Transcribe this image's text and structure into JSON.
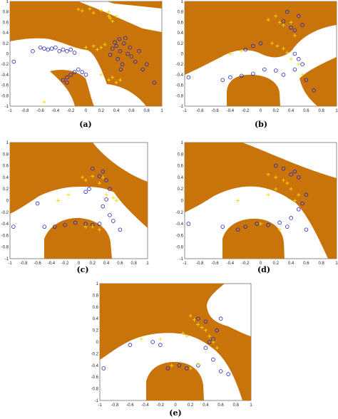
{
  "chart_data": [
    {
      "type": "scatter",
      "label": "(a)",
      "xlim": [
        -1,
        1
      ],
      "ylim": [
        -1,
        1
      ],
      "xticks": [
        "-1",
        "-0.8",
        "-0.6",
        "-0.4",
        "-0.2",
        "0",
        "0.2",
        "0.4",
        "0.6",
        "0.8",
        "1"
      ],
      "yticks": [
        "1",
        "0.8",
        "0.6",
        "0.4",
        "0.2",
        "0",
        "-0.2",
        "-0.4",
        "-0.6",
        "-0.8",
        "-1"
      ],
      "region_color": "#c8740a",
      "series": [
        {
          "marker": "circle",
          "color": "#2222bb",
          "points": [
            [
              -0.95,
              -0.15
            ],
            [
              -0.7,
              0.05
            ],
            [
              -0.6,
              0.12
            ],
            [
              -0.55,
              0.1
            ],
            [
              -0.5,
              0.08
            ],
            [
              -0.45,
              0.1
            ],
            [
              -0.4,
              0.12
            ],
            [
              -0.35,
              0.05
            ],
            [
              -0.3,
              0.08
            ],
            [
              -0.25,
              0.05
            ],
            [
              -0.2,
              0.08
            ],
            [
              -0.15,
              0.02
            ],
            [
              -0.3,
              -0.5
            ],
            [
              -0.25,
              -0.45
            ],
            [
              -0.2,
              -0.4
            ],
            [
              -0.15,
              -0.35
            ],
            [
              -0.1,
              -0.3
            ],
            [
              -0.05,
              -0.35
            ],
            [
              0.0,
              -0.4
            ],
            [
              -0.25,
              -0.55
            ],
            [
              0.35,
              0.1
            ],
            [
              0.4,
              0.15
            ],
            [
              0.45,
              0.05
            ],
            [
              0.5,
              0.2
            ],
            [
              0.55,
              0.0
            ],
            [
              0.6,
              -0.05
            ],
            [
              0.42,
              -0.1
            ],
            [
              0.38,
              0.22
            ],
            [
              0.48,
              -0.2
            ],
            [
              0.52,
              0.3
            ],
            [
              0.58,
              0.12
            ],
            [
              0.65,
              -0.15
            ],
            [
              0.7,
              0.05
            ],
            [
              0.32,
              -0.02
            ],
            [
              0.44,
              0.28
            ],
            [
              0.75,
              -0.3
            ],
            [
              0.8,
              -0.2
            ],
            [
              0.9,
              -0.55
            ],
            [
              0.46,
              -0.3
            ]
          ]
        },
        {
          "marker": "plus",
          "color": "#ffd700",
          "points": [
            [
              -0.1,
              0.85
            ],
            [
              -0.05,
              0.82
            ],
            [
              0.05,
              0.86
            ],
            [
              0.1,
              0.78
            ],
            [
              0.2,
              0.83
            ],
            [
              0.3,
              0.72
            ],
            [
              0.3,
              0.8
            ],
            [
              0.32,
              0.68
            ],
            [
              0.35,
              0.62
            ],
            [
              0.4,
              0.72
            ],
            [
              0.1,
              0.15
            ],
            [
              0.2,
              0.12
            ],
            [
              0.25,
              0.18
            ],
            [
              0.15,
              0.08
            ],
            [
              0.0,
              0.12
            ],
            [
              0.2,
              -0.4
            ],
            [
              0.3,
              -0.5
            ],
            [
              0.35,
              -0.45
            ],
            [
              0.4,
              -0.55
            ],
            [
              0.45,
              -0.5
            ],
            [
              -0.55,
              -0.92
            ]
          ]
        }
      ]
    },
    {
      "type": "scatter",
      "label": "(b)",
      "xlim": [
        -1,
        1
      ],
      "ylim": [
        -1,
        1
      ],
      "xticks": [
        "-1",
        "-0.8",
        "-0.6",
        "-0.4",
        "-0.2",
        "0",
        "0.2",
        "0.4",
        "0.6",
        "0.8",
        "1"
      ],
      "yticks": [
        "1",
        "0.8",
        "0.6",
        "0.4",
        "0.2",
        "0",
        "-0.2",
        "-0.4",
        "-0.6",
        "-0.8",
        "-1"
      ],
      "region_color": "#c8740a",
      "series": [
        {
          "marker": "circle",
          "color": "#2222bb",
          "points": [
            [
              -0.95,
              -0.45
            ],
            [
              -0.5,
              -0.5
            ],
            [
              -0.4,
              -0.45
            ],
            [
              -0.25,
              -0.42
            ],
            [
              -0.1,
              -0.38
            ],
            [
              0.05,
              -0.3
            ],
            [
              0.2,
              -0.32
            ],
            [
              0.3,
              -0.4
            ],
            [
              0.45,
              -0.3
            ],
            [
              0.5,
              -0.1
            ],
            [
              0.45,
              0.0
            ],
            [
              0.55,
              -0.2
            ],
            [
              0.6,
              -0.5
            ],
            [
              0.7,
              -0.7
            ],
            [
              0.4,
              0.5
            ],
            [
              0.45,
              0.45
            ],
            [
              0.3,
              0.62
            ],
            [
              0.35,
              0.8
            ],
            [
              0.5,
              0.72
            ],
            [
              0.55,
              0.55
            ],
            [
              -0.1,
              0.15
            ],
            [
              -0.2,
              0.08
            ],
            [
              0.0,
              0.2
            ]
          ]
        },
        {
          "marker": "plus",
          "color": "#ffd700",
          "points": [
            [
              0.1,
              0.65
            ],
            [
              0.2,
              0.72
            ],
            [
              0.25,
              0.6
            ],
            [
              0.3,
              0.55
            ],
            [
              0.4,
              0.6
            ],
            [
              0.45,
              0.35
            ],
            [
              0.15,
              0.2
            ],
            [
              0.22,
              0.15
            ],
            [
              0.3,
              0.1
            ],
            [
              0.35,
              0.02
            ],
            [
              0.4,
              -0.1
            ],
            [
              0.5,
              -0.2
            ],
            [
              0.55,
              -0.4
            ],
            [
              -0.4,
              0.0
            ],
            [
              -0.25,
              0.05
            ]
          ]
        }
      ]
    },
    {
      "type": "scatter",
      "label": "(c)",
      "xlim": [
        -1,
        1
      ],
      "ylim": [
        -1,
        1
      ],
      "xticks": [
        "-1",
        "-0.8",
        "-0.6",
        "-0.4",
        "-0.2",
        "0",
        "0.2",
        "0.4",
        "0.6",
        "0.8",
        "1"
      ],
      "yticks": [
        "1",
        "0.8",
        "0.6",
        "0.4",
        "0.2",
        "0",
        "-0.2",
        "-0.4",
        "-0.6",
        "-0.8",
        "-1"
      ],
      "region_color": "#c8740a",
      "series": [
        {
          "marker": "circle",
          "color": "#2222bb",
          "points": [
            [
              -0.95,
              -0.45
            ],
            [
              -0.6,
              -0.05
            ],
            [
              -0.5,
              -0.45
            ],
            [
              -0.35,
              -0.45
            ],
            [
              -0.2,
              -0.42
            ],
            [
              -0.05,
              -0.38
            ],
            [
              0.1,
              -0.4
            ],
            [
              0.2,
              -0.42
            ],
            [
              0.3,
              -0.4
            ],
            [
              0.35,
              -0.1
            ],
            [
              0.4,
              0.02
            ],
            [
              0.45,
              -0.25
            ],
            [
              0.5,
              -0.35
            ],
            [
              0.6,
              -0.5
            ],
            [
              0.3,
              0.42
            ],
            [
              0.35,
              0.5
            ],
            [
              0.4,
              0.35
            ],
            [
              0.45,
              0.2
            ],
            [
              0.2,
              0.55
            ],
            [
              0.15,
              0.2
            ],
            [
              0.1,
              0.15
            ]
          ]
        },
        {
          "marker": "plus",
          "color": "#ffd700",
          "points": [
            [
              0.05,
              0.4
            ],
            [
              0.1,
              0.35
            ],
            [
              0.2,
              0.42
            ],
            [
              0.3,
              0.3
            ],
            [
              0.35,
              0.4
            ],
            [
              0.4,
              0.1
            ],
            [
              0.5,
              0.05
            ],
            [
              0.55,
              0.0
            ],
            [
              0.2,
              -0.45
            ],
            [
              0.3,
              -0.5
            ],
            [
              0.1,
              -0.45
            ],
            [
              -0.3,
              0.0
            ],
            [
              -0.15,
              0.1
            ]
          ]
        }
      ]
    },
    {
      "type": "scatter",
      "label": "(d)",
      "xlim": [
        -1,
        1
      ],
      "ylim": [
        -1,
        1
      ],
      "xticks": [
        "-1",
        "-0.8",
        "-0.6",
        "-0.4",
        "-0.2",
        "0",
        "0.2",
        "0.4",
        "0.6",
        "0.8",
        "1"
      ],
      "yticks": [
        "1",
        "0.8",
        "0.6",
        "0.4",
        "0.2",
        "0",
        "-0.2",
        "-0.4",
        "-0.6",
        "-0.8",
        "-1"
      ],
      "region_color": "#c8740a",
      "series": [
        {
          "marker": "circle",
          "color": "#2222bb",
          "points": [
            [
              -0.95,
              -0.4
            ],
            [
              -0.5,
              -0.45
            ],
            [
              -0.3,
              -0.5
            ],
            [
              -0.2,
              -0.45
            ],
            [
              -0.05,
              -0.4
            ],
            [
              0.1,
              -0.42
            ],
            [
              0.25,
              -0.38
            ],
            [
              0.35,
              -0.45
            ],
            [
              0.4,
              -0.3
            ],
            [
              0.5,
              -0.15
            ],
            [
              0.55,
              -0.05
            ],
            [
              0.6,
              -0.5
            ],
            [
              0.4,
              0.45
            ],
            [
              0.45,
              0.5
            ],
            [
              0.5,
              0.4
            ],
            [
              0.3,
              0.55
            ],
            [
              0.2,
              0.6
            ],
            [
              0.6,
              0.1
            ]
          ]
        },
        {
          "marker": "plus",
          "color": "#ffd700",
          "points": [
            [
              0.1,
              0.45
            ],
            [
              0.2,
              0.4
            ],
            [
              0.3,
              0.35
            ],
            [
              0.35,
              0.3
            ],
            [
              0.4,
              0.2
            ],
            [
              0.5,
              0.1
            ],
            [
              0.45,
              0.0
            ],
            [
              0.2,
              0.2
            ],
            [
              0.1,
              0.1
            ],
            [
              0.0,
              -0.4
            ],
            [
              0.25,
              -0.5
            ],
            [
              -0.3,
              0.0
            ]
          ]
        }
      ]
    },
    {
      "type": "scatter",
      "label": "(e)",
      "xlim": [
        -1,
        1
      ],
      "ylim": [
        -1,
        1
      ],
      "xticks": [
        "-1",
        "-0.8",
        "-0.6",
        "-0.4",
        "-0.2",
        "0",
        "0.2",
        "0.4",
        "0.6",
        "0.8",
        "1"
      ],
      "yticks": [
        "1",
        "0.8",
        "0.6",
        "0.4",
        "0.2",
        "0",
        "-0.2",
        "-0.4",
        "-0.6",
        "-0.8",
        "-1"
      ],
      "region_color": "#c8740a",
      "series": [
        {
          "marker": "circle",
          "color": "#2222bb",
          "points": [
            [
              -0.95,
              -0.45
            ],
            [
              -0.6,
              -0.05
            ],
            [
              -0.3,
              0.0
            ],
            [
              -0.2,
              -0.05
            ],
            [
              -0.1,
              -0.45
            ],
            [
              0.05,
              -0.4
            ],
            [
              0.15,
              -0.45
            ],
            [
              0.3,
              -0.4
            ],
            [
              0.4,
              -0.1
            ],
            [
              0.45,
              0.0
            ],
            [
              0.5,
              -0.3
            ],
            [
              0.6,
              -0.5
            ],
            [
              0.7,
              -0.55
            ],
            [
              0.6,
              0.4
            ],
            [
              0.55,
              0.2
            ],
            [
              0.5,
              0.05
            ],
            [
              0.3,
              0.4
            ],
            [
              0.4,
              0.35
            ]
          ]
        },
        {
          "marker": "plus",
          "color": "#ffd700",
          "points": [
            [
              0.2,
              0.45
            ],
            [
              0.25,
              0.38
            ],
            [
              0.3,
              0.3
            ],
            [
              0.35,
              0.25
            ],
            [
              0.4,
              0.2
            ],
            [
              0.45,
              0.1
            ],
            [
              0.5,
              0.0
            ],
            [
              0.55,
              -0.1
            ],
            [
              0.1,
              0.15
            ],
            [
              0.15,
              0.1
            ],
            [
              -0.05,
              -0.4
            ],
            [
              0.2,
              -0.45
            ],
            [
              0.3,
              -0.38
            ],
            [
              -0.45,
              0.05
            ],
            [
              -0.2,
              0.05
            ]
          ]
        }
      ]
    }
  ]
}
